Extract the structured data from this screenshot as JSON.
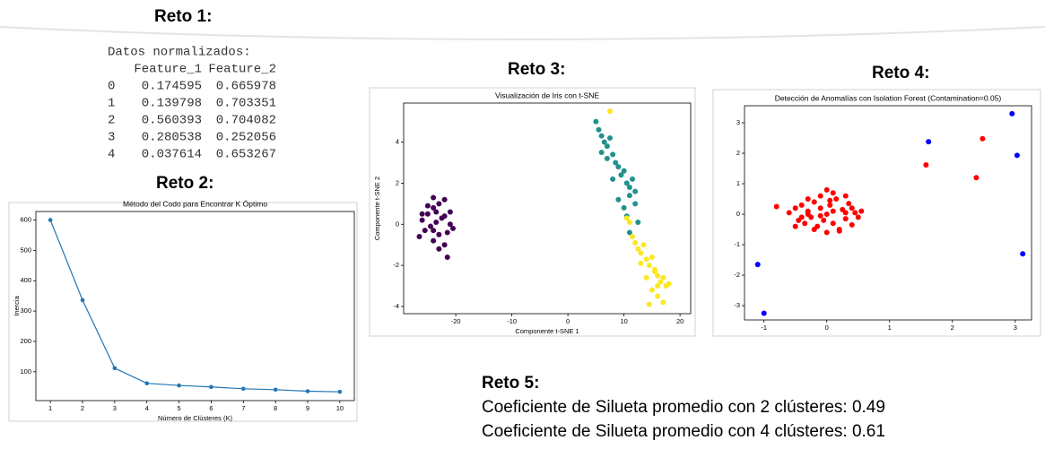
{
  "section_titles": [
    "Reto 1:",
    "Reto 2:",
    "Reto 3:",
    "Reto 4:",
    "Reto 5:"
  ],
  "table": {
    "caption": "Datos normalizados:",
    "columns": [
      "Feature_1",
      "Feature_2"
    ],
    "rows": [
      [
        "0",
        "0.174595",
        "0.665978"
      ],
      [
        "1",
        "0.139798",
        "0.703351"
      ],
      [
        "2",
        "0.560393",
        "0.704082"
      ],
      [
        "3",
        "0.280538",
        "0.252056"
      ],
      [
        "4",
        "0.037614",
        "0.653267"
      ]
    ]
  },
  "reto5_lines": [
    "Coeficiente de Silueta promedio con 2 clústeres: 0.49",
    "Coeficiente de Silueta promedio con 4 clústeres: 0.61"
  ],
  "chart_data": [
    {
      "type": "line",
      "title": "Método del Codo para Encontrar K Óptimo",
      "x_label": "Número de Clústeres (K)",
      "y_label": "Inercia",
      "x": [
        1,
        2,
        3,
        4,
        5,
        6,
        7,
        8,
        9,
        10
      ],
      "values": [
        600,
        336,
        112,
        62,
        55,
        50,
        44,
        41,
        36,
        34
      ],
      "color": "#1f77b4",
      "xlim": [
        0.55,
        10.45
      ],
      "ylim": [
        5,
        628
      ],
      "xticks": [
        1,
        2,
        3,
        4,
        5,
        6,
        7,
        8,
        9,
        10
      ],
      "yticks": [
        100,
        200,
        300,
        400,
        500,
        600
      ]
    },
    {
      "type": "scatter",
      "title": "Visualización de Iris con t-SNE",
      "x_label": "Componente t-SNE 1",
      "y_label": "Componente t-SNE 2",
      "series": [
        {
          "color": "#440154",
          "x": [
            -26,
            -25,
            -24,
            -23,
            -22,
            -21,
            -25.5,
            -24.5,
            -23.5,
            -22.5,
            -21.5,
            -26.5,
            -24,
            -23,
            -22,
            -25,
            -24,
            -23,
            -21,
            -20.5,
            -26,
            -23.5,
            -22,
            -24,
            -21.5
          ],
          "y": [
            0.2,
            0.5,
            0.8,
            1.0,
            1.2,
            0.6,
            -0.3,
            -0.1,
            0.1,
            0.3,
            -0.4,
            -0.6,
            -0.8,
            -0.5,
            -1.0,
            0.9,
            1.3,
            -1.2,
            0.0,
            -0.2,
            0.5,
            0.6,
            0.4,
            -0.3,
            -1.6
          ]
        },
        {
          "color": "#21918c",
          "x": [
            5,
            5.5,
            6,
            6.5,
            7,
            7.5,
            6,
            7,
            8,
            8.5,
            9,
            9.5,
            8,
            10,
            10.5,
            11,
            11.5,
            12,
            9,
            10,
            11,
            12,
            10.5,
            11,
            12.5
          ],
          "y": [
            5,
            4.6,
            4.3,
            4.0,
            3.8,
            4.2,
            3.5,
            3.2,
            3.4,
            3.0,
            2.8,
            2.4,
            2.2,
            2.6,
            2.0,
            1.8,
            2.2,
            1.6,
            1.2,
            0.8,
            1.4,
            1.0,
            0.4,
            -0.4,
            0.1
          ]
        },
        {
          "color": "#fde725",
          "x": [
            7.5,
            10.5,
            11,
            11.5,
            12,
            12.5,
            13,
            13.5,
            14,
            14.5,
            15,
            15.5,
            16,
            16.5,
            17,
            17.5,
            18,
            14,
            15,
            16,
            13,
            17,
            14.5,
            16,
            15.5
          ],
          "y": [
            5.5,
            0.3,
            0.1,
            -0.6,
            -0.9,
            -1.2,
            -1.4,
            -1.0,
            -1.7,
            -2.0,
            -1.6,
            -2.3,
            -2.5,
            -2.8,
            -2.6,
            -3.0,
            -2.9,
            -2.6,
            -3.2,
            -3.5,
            -1.9,
            -3.8,
            -3.9,
            -3.0,
            -2.2
          ]
        }
      ],
      "xlim": [
        -29.3,
        21.9
      ],
      "ylim": [
        -4.35,
        5.9
      ],
      "xticks": [
        -20,
        -10,
        0,
        10,
        20
      ],
      "yticks": [
        -4,
        -2,
        0,
        2,
        4
      ]
    },
    {
      "type": "scatter",
      "title": "Detección de Anomalías con Isolation Forest (Contamination=0.05)",
      "series": [
        {
          "color": "#ff0000",
          "x": [
            -0.6,
            -0.5,
            -0.45,
            -0.4,
            -0.35,
            -0.3,
            -0.25,
            -0.2,
            -0.15,
            -0.1,
            -0.05,
            0,
            0.05,
            0.1,
            0.15,
            0.2,
            0.25,
            0.3,
            0.35,
            0.4,
            0.45,
            0.5,
            -0.5,
            -0.3,
            -0.1,
            0.1,
            0.3,
            -0.2,
            0,
            0.2,
            -0.4,
            0.4,
            0,
            -0.1,
            0.1,
            0.05,
            -0.3,
            0.3,
            -0.8,
            0.55,
            1.58,
            2.48,
            2.38
          ],
          "y": [
            0.05,
            0.2,
            -0.2,
            0.3,
            -0.3,
            0.1,
            -0.1,
            0.4,
            -0.4,
            0.2,
            -0.2,
            0.0,
            0.3,
            -0.3,
            0.5,
            -0.5,
            0.15,
            -0.15,
            0.35,
            -0.35,
            0.05,
            -0.1,
            -0.4,
            0.5,
            0.6,
            0.7,
            0.6,
            -0.5,
            -0.6,
            -0.55,
            -0.1,
            0.2,
            0.8,
            -0.05,
            0.1,
            0.45,
            0.0,
            0.05,
            0.25,
            0.1,
            1.62,
            2.48,
            1.2
          ]
        },
        {
          "color": "#0000ff",
          "x": [
            1.62,
            2.95,
            3.03,
            3.12,
            -1.1,
            -1.0
          ],
          "y": [
            2.38,
            3.3,
            1.93,
            -1.3,
            -1.65,
            -3.25
          ]
        }
      ],
      "xlim": [
        -1.31,
        3.26
      ],
      "ylim": [
        -3.47,
        3.56
      ],
      "xticks": [
        -1,
        0,
        1,
        2,
        3
      ],
      "yticks": [
        -3,
        -2,
        -1,
        0,
        1,
        2,
        3
      ]
    }
  ]
}
